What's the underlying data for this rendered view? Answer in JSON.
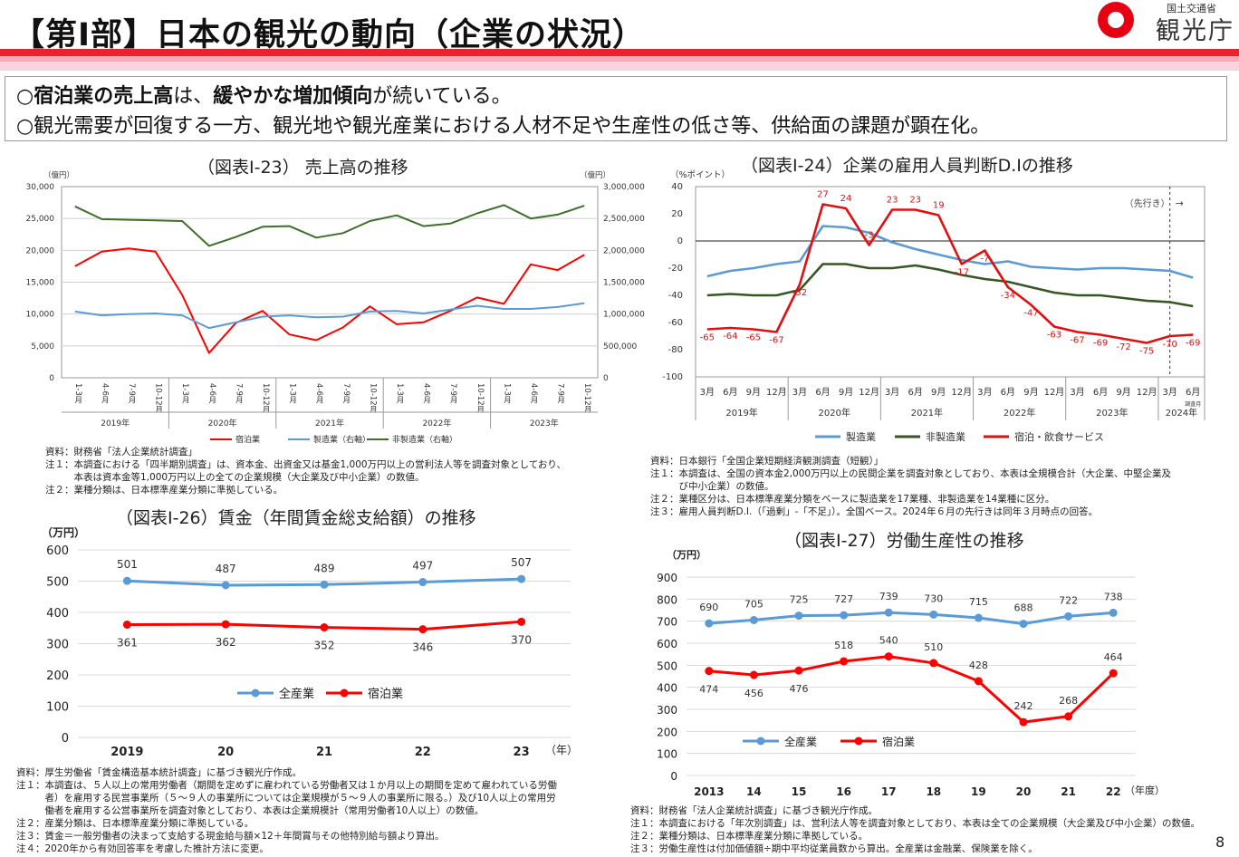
{
  "header": {
    "title": "【第Ⅰ部】日本の観光の動向（企業の状況）",
    "logo_small": "国土交通省",
    "logo_big": "観光庁"
  },
  "summary": {
    "line1": [
      "○",
      "宿泊業の売上高",
      "は、",
      "緩やかな増加傾向",
      "が続いている。"
    ],
    "line2": "○観光需要が回復する一方、観光地や観光産業における人材不足や生産性の低さ等、供給面の課題が顕在化。"
  },
  "chart_data": [
    {
      "id": "sales",
      "type": "line",
      "title": "（図表Ⅰ-23） 売上高の推移",
      "unit_left": "（億円）",
      "unit_right": "（億円）",
      "ylim_left": [
        0,
        30000
      ],
      "ylim_right": [
        0,
        3000000
      ],
      "yticks_left": [
        "0",
        "5,000",
        "10,000",
        "15,000",
        "20,000",
        "25,000",
        "30,000"
      ],
      "yticks_right": [
        "0",
        "500,000",
        "1,000,000",
        "1,500,000",
        "2,000,000",
        "2,500,000",
        "3,000,000"
      ],
      "categories": [
        "1-3月",
        "4-6月",
        "7-9月",
        "10-12月",
        "1-3月",
        "4-6月",
        "7-9月",
        "10-12月",
        "1-3月",
        "4-6月",
        "7-9月",
        "10-12月",
        "1-3月",
        "4-6月",
        "7-9月",
        "10-12月",
        "1-3月",
        "4-6月",
        "7-9月",
        "10-12月"
      ],
      "years": [
        "2019年",
        "2020年",
        "2021年",
        "2022年",
        "2023年"
      ],
      "series": [
        {
          "name": "宿泊業",
          "axis": "left",
          "color": "#ff0000",
          "values": [
            17500,
            19800,
            20300,
            19800,
            13000,
            3900,
            8600,
            10500,
            6800,
            5900,
            7900,
            11200,
            8400,
            8700,
            10500,
            12600,
            11600,
            17800,
            16900,
            19300
          ]
        },
        {
          "name": "製造業（右軸）",
          "axis": "right",
          "color": "#5b9bd5",
          "values": [
            1040000,
            980000,
            1000000,
            1010000,
            980000,
            780000,
            870000,
            960000,
            980000,
            950000,
            960000,
            1040000,
            1050000,
            1010000,
            1070000,
            1130000,
            1080000,
            1080000,
            1110000,
            1170000
          ]
        },
        {
          "name": "非製造業（右軸）",
          "axis": "right",
          "color": "#3f6f2a",
          "values": [
            2690000,
            2490000,
            2480000,
            2470000,
            2460000,
            2070000,
            2210000,
            2370000,
            2380000,
            2200000,
            2270000,
            2460000,
            2550000,
            2380000,
            2420000,
            2580000,
            2710000,
            2500000,
            2560000,
            2700000
          ]
        }
      ]
    },
    {
      "id": "di",
      "type": "line",
      "title": "（図表Ⅰ-24）企業の雇用人員判断D.Iの推移",
      "unit": "（%ポイント）",
      "ylim": [
        -100,
        40
      ],
      "yticks": [
        "-100",
        "-80",
        "-60",
        "-40",
        "-20",
        "0",
        "20",
        "40"
      ],
      "categories": [
        "3月",
        "6月",
        "9月",
        "12月",
        "3月",
        "6月",
        "9月",
        "12月",
        "3月",
        "6月",
        "9月",
        "12月",
        "3月",
        "6月",
        "9月",
        "12月",
        "3月",
        "6月",
        "9月",
        "12月",
        "3月",
        "6月"
      ],
      "years": [
        "2019年",
        "2020年",
        "2021年",
        "2022年",
        "2023年",
        "2024年"
      ],
      "forecast_label": "（先行き）",
      "forecast_arrow": "→",
      "last_sub": "調査月",
      "series": [
        {
          "name": "製造業",
          "color": "#5b9bd5",
          "values": [
            -26,
            -22,
            -20,
            -17,
            -15,
            11,
            10,
            6,
            -1,
            -6,
            -10,
            -14,
            -17,
            -15,
            -19,
            -20,
            -21,
            -20,
            -20,
            -21,
            -22,
            -27
          ]
        },
        {
          "name": "非製造業",
          "color": "#375623",
          "values": [
            -40,
            -39,
            -40,
            -40,
            -36,
            -17,
            -17,
            -20,
            -20,
            -18,
            -21,
            -25,
            -28,
            -30,
            -34,
            -38,
            -40,
            -40,
            -42,
            -44,
            -45,
            -48
          ]
        },
        {
          "name": "宿泊・飲食サービス",
          "color": "#e01010",
          "values": [
            -65,
            -64,
            -65,
            -67,
            -32,
            27,
            24,
            -3,
            23,
            23,
            19,
            -17,
            -7,
            -34,
            -47,
            -63,
            -67,
            -69,
            -72,
            -75,
            -70,
            -69
          ]
        }
      ],
      "labels": [
        "-65",
        "-64",
        "-65",
        "-67",
        "-32",
        "27",
        "24",
        "-3",
        "23",
        "23",
        "19",
        "-17",
        "-7",
        "-34",
        "-47",
        "-63",
        "-67",
        "-69",
        "-72",
        "-75",
        "-70",
        "-69"
      ]
    },
    {
      "id": "wage",
      "type": "line",
      "title": "（図表Ⅰ-26）賃金（年間賃金総支給額）の推移",
      "unit": "（万円）",
      "xunit": "（年）",
      "ylim": [
        0,
        600
      ],
      "yticks": [
        "0",
        "100",
        "200",
        "300",
        "400",
        "500",
        "600"
      ],
      "categories": [
        "2019",
        "20",
        "21",
        "22",
        "23"
      ],
      "series": [
        {
          "name": "全産業",
          "color": "#5b9bd5",
          "values": [
            501,
            487,
            489,
            497,
            507
          ]
        },
        {
          "name": "宿泊業",
          "color": "#ff0000",
          "values": [
            361,
            362,
            352,
            346,
            370
          ]
        }
      ]
    },
    {
      "id": "prod",
      "type": "line",
      "title": "（図表Ⅰ-27）労働生産性の推移",
      "unit": "（万円）",
      "xunit": "（年度）",
      "ylim": [
        0,
        900
      ],
      "yticks": [
        "0",
        "100",
        "200",
        "300",
        "400",
        "500",
        "600",
        "700",
        "800",
        "900"
      ],
      "categories": [
        "2013",
        "14",
        "15",
        "16",
        "17",
        "18",
        "19",
        "20",
        "21",
        "22"
      ],
      "series": [
        {
          "name": "全産業",
          "color": "#5b9bd5",
          "values": [
            690,
            705,
            725,
            727,
            739,
            730,
            715,
            688,
            722,
            738
          ]
        },
        {
          "name": "宿泊業",
          "color": "#ff0000",
          "values": [
            474,
            456,
            476,
            518,
            540,
            510,
            428,
            242,
            268,
            464
          ]
        }
      ]
    }
  ],
  "notes": {
    "sales": [
      "資料：財務省「法人企業統計調査」",
      "注１：本調査における「四半期別調査」は、資本金、出資金又は基金1,000万円以上の営利法人等を調査対象としており、",
      "　　　本表は資本金等1,000万円以上の全ての企業規模（大企業及び中小企業）の数値。",
      "注２：業種分類は、日本標準産業分類に準拠している。"
    ],
    "di": [
      "資料：日本銀行「全国企業短期経済観測調査（短観）」",
      "注１：本調査は、全国の資本金2,000万円以上の民間企業を調査対象としており、本表は全規模合計（大企業、中堅企業及",
      "　　　び中小企業）の数値。",
      "注２：業種区分は、日本標準産業分類をベースに製造業を17業種、非製造業を14業種に区分。",
      "注３：雇用人員判断D.I.（「過剰」-「不足」）。全国ベース。2024年６月の先行きは同年３月時点の回答。"
    ],
    "wage": [
      "資料：厚生労働省「賃金構造基本統計調査」に基づき観光庁作成。",
      "注１：本調査は、５人以上の常用労働者（期間を定めずに雇われている労働者又は１か月以上の期間を定めて雇われている労働",
      "　　　者）を雇用する民営事業所（５～９人の事業所については企業規模が５～９人の事業所に限る。）及び10人以上の常用労",
      "　　　働者を雇用する公営事業所を調査対象としており、本表は企業規模計（常用労働者10人以上）の数値。",
      "注２：産業分類は、日本標準産業分類に準拠している。",
      "注３：賃金＝一般労働者の決まって支給する現金給与額×12＋年間賞与その他特別給与額より算出。",
      "注４：2020年から有効回答率を考慮した推計方法に変更。"
    ],
    "prod": [
      "資料：財務省「法人企業統計調査」に基づき観光庁作成。",
      "注１：本調査における「年次別調査」は、営利法人等を調査対象としており、本表は全ての企業規模（大企業及び中小企業）の数値。",
      "注２：業種分類は、日本標準産業分類に準拠している。",
      "注３：労働生産性は付加価値額÷期中平均従業員数から算出。全産業は金融業、保険業を除く。"
    ]
  },
  "page_number": "8"
}
